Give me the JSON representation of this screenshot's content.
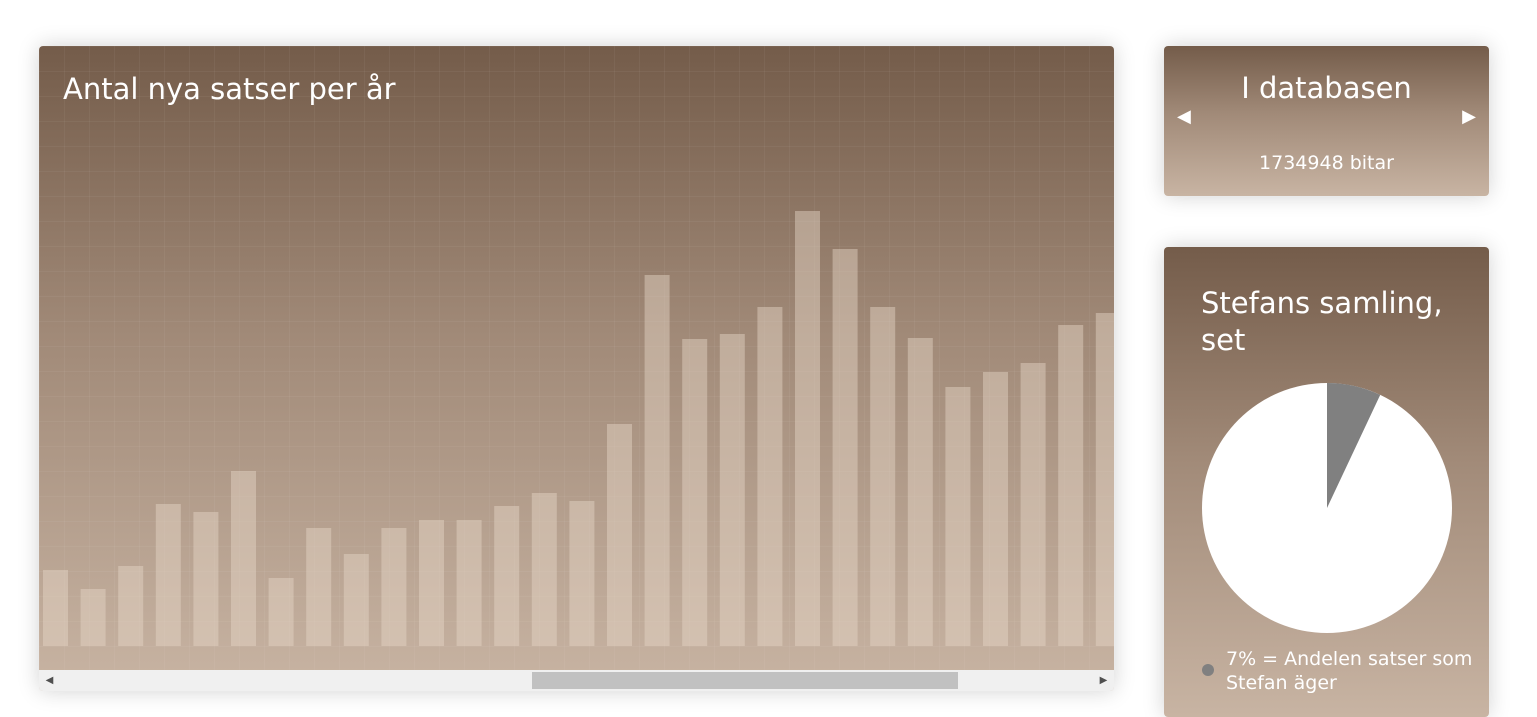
{
  "chart_card": {
    "title": "Antal nya satser per år"
  },
  "chart_data": {
    "type": "bar",
    "title": "Antal nya satser per år",
    "values": [
      76,
      57,
      80,
      142,
      134,
      175,
      68,
      118,
      92,
      118,
      126,
      126,
      140,
      153,
      145,
      222,
      371,
      307,
      312,
      339,
      435,
      397,
      339,
      308,
      259,
      274,
      283,
      321,
      333
    ],
    "color": "rgba(230,215,200,0.45)"
  },
  "scrollbar": {
    "left_arrow": "◀",
    "right_arrow": "▶"
  },
  "db_card": {
    "title": "I databasen",
    "prev_arrow": "◀",
    "next_arrow": "▶",
    "value": "1734948 bitar"
  },
  "pie_card": {
    "title": "Stefans samling, set",
    "legend": "7% = Andelen satser som Stefan äger",
    "share": 0.07,
    "owned_color": "#808080",
    "rest_color": "#ffffff"
  }
}
